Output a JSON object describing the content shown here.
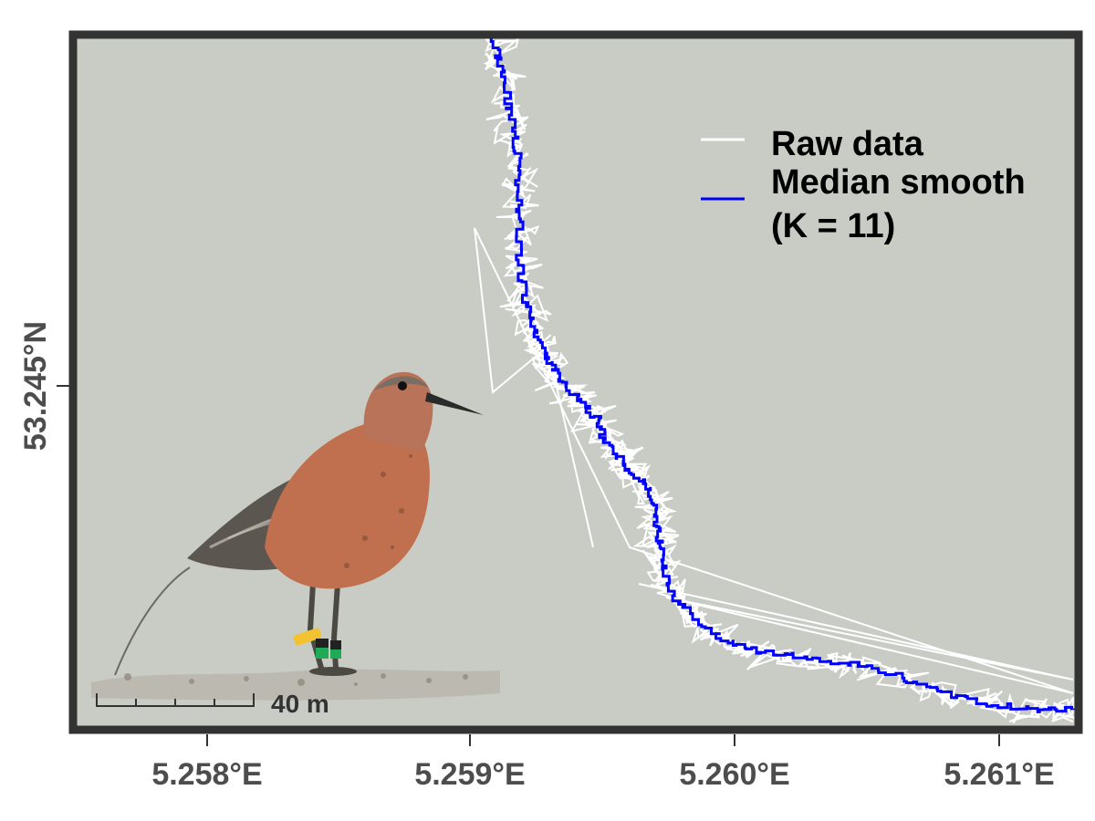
{
  "map": {
    "x_ticks": [
      "5.258°E",
      "5.259°E",
      "5.260°E",
      "5.261°E"
    ],
    "y_ticks": [
      "53.245°N"
    ],
    "panel_color": "#c8ccc5",
    "frame_color": "#333333",
    "raw_color": "#ffffff",
    "smooth_color": "#0000ff"
  },
  "legend": {
    "raw_label": "Raw data",
    "smooth_label_line1": "Median smooth",
    "smooth_label_line2": "(K = 11)"
  },
  "scale_bar": {
    "label": "40 m"
  },
  "inset": {
    "subject": "red-knot-shorebird-with-color-leg-rings-and-tag-antenna"
  }
}
